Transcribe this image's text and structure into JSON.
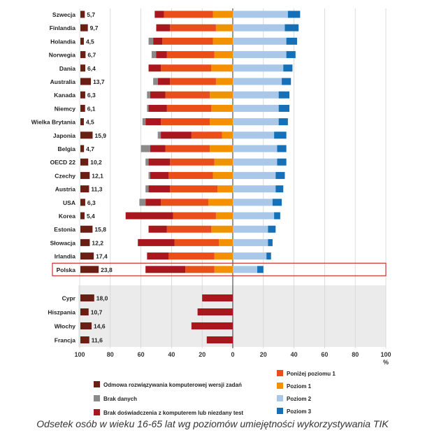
{
  "caption": "Odsetek osób w wieku 16-65 lat wg poziomów umiejętności wykorzystywania TIK",
  "chart_data": {
    "type": "bar",
    "title": "Odsetek osób w wieku 16-65 lat wg poziomów umiejętności wykorzystywania TIK",
    "xunit": "%",
    "xlim_left": [
      0,
      100
    ],
    "xlim_right": [
      0,
      100
    ],
    "left_ticks": [
      100,
      80,
      60,
      40,
      20,
      0
    ],
    "right_ticks": [
      20,
      40,
      60,
      80,
      100
    ],
    "colors": {
      "refused": "#6b1e14",
      "missing": "#8a8a8a",
      "noexp": "#a8171d",
      "below1": "#e94e1b",
      "level1": "#f39200",
      "level2": "#a9c7e8",
      "level3": "#1570b8"
    },
    "legend": {
      "refused": "Odmowa rozwiązywania komputerowej wersji zadań",
      "missing": "Brak danych",
      "noexp": "Brak doświadczenia z komputerem lub niezdany test",
      "below1": "Poniżej poziomu 1",
      "level1": "Poziom 1",
      "level2": "Poziom 2",
      "level3": "Poziom 3"
    },
    "countries": [
      {
        "name": "Szwecja",
        "refused": 5.7,
        "refused_label": "5,7",
        "missing": 0,
        "noexp": 6,
        "below1": 32,
        "level1": 13,
        "level2": 36,
        "level3": 8
      },
      {
        "name": "Finlandia",
        "refused": 9.7,
        "refused_label": "9,7",
        "missing": 0,
        "noexp": 9,
        "below1": 30,
        "level1": 11,
        "level2": 34,
        "level3": 9
      },
      {
        "name": "Holandia",
        "refused": 4.5,
        "refused_label": "4,5",
        "missing": 3,
        "noexp": 6,
        "below1": 33,
        "level1": 13,
        "level2": 35,
        "level3": 7
      },
      {
        "name": "Norwegia",
        "refused": 6.7,
        "refused_label": "6,7",
        "missing": 3,
        "noexp": 7,
        "below1": 31,
        "level1": 12,
        "level2": 35,
        "level3": 6
      },
      {
        "name": "Dania",
        "refused": 6.4,
        "refused_label": "6,4",
        "missing": 0,
        "noexp": 8,
        "below1": 33,
        "level1": 14,
        "level2": 33,
        "level3": 6
      },
      {
        "name": "Australia",
        "refused": 13.7,
        "refused_label": "13,7",
        "missing": 3,
        "noexp": 8,
        "below1": 30,
        "level1": 11,
        "level2": 32,
        "level3": 6
      },
      {
        "name": "Kanada",
        "refused": 6.3,
        "refused_label": "6,3",
        "missing": 2,
        "noexp": 10,
        "below1": 29,
        "level1": 15,
        "level2": 30,
        "level3": 7
      },
      {
        "name": "Niemcy",
        "refused": 6.1,
        "refused_label": "6,1",
        "missing": 1,
        "noexp": 12,
        "below1": 29,
        "level1": 14,
        "level2": 30,
        "level3": 7
      },
      {
        "name": "Wielka Brytania",
        "refused": 4.5,
        "refused_label": "4,5",
        "missing": 2,
        "noexp": 10,
        "below1": 32,
        "level1": 15,
        "level2": 30,
        "level3": 6
      },
      {
        "name": "Japonia",
        "refused": 15.9,
        "refused_label": "15,9",
        "missing": 2,
        "noexp": 20,
        "below1": 20,
        "level1": 7,
        "level2": 27,
        "level3": 8
      },
      {
        "name": "Belgia",
        "refused": 4.7,
        "refused_label": "4,7",
        "missing": 6,
        "noexp": 10,
        "below1": 29,
        "level1": 15,
        "level2": 29,
        "level3": 6
      },
      {
        "name": "OECD 22",
        "refused": 10.2,
        "refused_label": "10,2",
        "missing": 2,
        "noexp": 14,
        "below1": 29,
        "level1": 12,
        "level2": 29,
        "level3": 6
      },
      {
        "name": "Czechy",
        "refused": 12.1,
        "refused_label": "12,1",
        "missing": 1,
        "noexp": 12,
        "below1": 29,
        "level1": 13,
        "level2": 28,
        "level3": 6
      },
      {
        "name": "Austria",
        "refused": 11.3,
        "refused_label": "11,3",
        "missing": 2,
        "noexp": 14,
        "below1": 31,
        "level1": 10,
        "level2": 28,
        "level3": 5
      },
      {
        "name": "USA",
        "refused": 6.3,
        "refused_label": "6,3",
        "missing": 4,
        "noexp": 10,
        "below1": 31,
        "level1": 16,
        "level2": 26,
        "level3": 6
      },
      {
        "name": "Korea",
        "refused": 5.4,
        "refused_label": "5,4",
        "missing": 0,
        "noexp": 31,
        "below1": 28,
        "level1": 11,
        "level2": 27,
        "level3": 4
      },
      {
        "name": "Estonia",
        "refused": 15.8,
        "refused_label": "15,8",
        "missing": 0,
        "noexp": 12,
        "below1": 29,
        "level1": 14,
        "level2": 23,
        "level3": 5
      },
      {
        "name": "Słowacja",
        "refused": 12.2,
        "refused_label": "12,2",
        "missing": 0,
        "noexp": 24,
        "below1": 29,
        "level1": 9,
        "level2": 23,
        "level3": 3
      },
      {
        "name": "Irlandia",
        "refused": 17.4,
        "refused_label": "17,4",
        "missing": 0,
        "noexp": 14,
        "below1": 30,
        "level1": 12,
        "level2": 22,
        "level3": 3
      },
      {
        "name": "Polska",
        "refused": 23.8,
        "refused_label": "23,8",
        "missing": 0,
        "noexp": 26,
        "below1": 19,
        "level1": 12,
        "level2": 16,
        "level3": 4,
        "highlight": true
      }
    ],
    "extra_countries": [
      {
        "name": "Cypr",
        "refused": 18.0,
        "refused_label": "18,0",
        "noexp": 20
      },
      {
        "name": "Hiszpania",
        "refused": 10.7,
        "refused_label": "10,7",
        "noexp": 23
      },
      {
        "name": "Włochy",
        "refused": 14.6,
        "refused_label": "14,6",
        "noexp": 27
      },
      {
        "name": "Francja",
        "refused": 11.6,
        "refused_label": "11,6",
        "noexp": 17
      }
    ]
  }
}
